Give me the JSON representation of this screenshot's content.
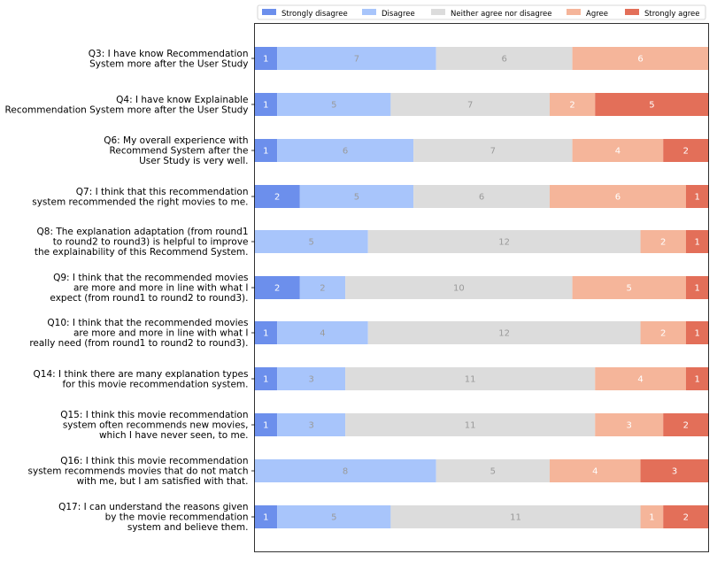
{
  "chart_data": {
    "type": "bar",
    "orientation": "horizontal",
    "stacked": true,
    "legend": {
      "placement": "top",
      "entries": [
        "Strongly disagree",
        "Disagree",
        "Neither agree nor disagree",
        "Agree",
        "Strongly agree"
      ]
    },
    "colors": [
      "#6c8fec",
      "#a8c5fb",
      "#dcdcdc",
      "#f5b59a",
      "#e36f59"
    ],
    "label_colors": [
      "#ffffff",
      "#9a9a9a",
      "#9a9a9a",
      "#ffffff",
      "#ffffff"
    ],
    "grid": false,
    "xlim": [
      0,
      20
    ],
    "categories": [
      [
        "Q3: I have know Recommendation",
        "System more after the User Study"
      ],
      [
        "Q4: I have know Explainable",
        "Recommendation System more after the User Study"
      ],
      [
        "Q6: My overall experience with",
        "Recommend System after the",
        "User Study is very well."
      ],
      [
        "Q7: I think that this recommendation",
        "system recommended the right movies to me."
      ],
      [
        "Q8: The explanation adaptation (from round1",
        "to round2 to round3) is helpful to improve",
        "the explainability of this Recommend System."
      ],
      [
        "Q9: I think that the recommended movies",
        "are more and more in line with what I",
        "expect (from round1 to round2 to round3)."
      ],
      [
        "Q10: I think that the recommended movies",
        "are more and more in line with what I",
        "really need (from round1 to round2 to round3)."
      ],
      [
        "Q14: I think there are many explanation types",
        "for this movie recommendation system."
      ],
      [
        "Q15: I think this movie recommendation",
        "system often recommends new movies,",
        "which I have never seen, to me."
      ],
      [
        "Q16: I think this movie recommendation",
        "system recommends movies that do not match",
        "with me, but I am satisfied with that."
      ],
      [
        "Q17: I can understand the reasons given",
        "by the movie recommendation",
        "system and believe them."
      ]
    ],
    "series": [
      {
        "name": "Strongly disagree",
        "values": [
          1,
          1,
          1,
          2,
          0,
          2,
          1,
          1,
          1,
          0,
          1
        ]
      },
      {
        "name": "Disagree",
        "values": [
          7,
          5,
          6,
          5,
          5,
          2,
          4,
          3,
          3,
          8,
          5
        ]
      },
      {
        "name": "Neither agree nor disagree",
        "values": [
          6,
          7,
          7,
          6,
          12,
          10,
          12,
          11,
          11,
          5,
          11
        ]
      },
      {
        "name": "Agree",
        "values": [
          6,
          2,
          4,
          6,
          2,
          5,
          2,
          4,
          3,
          4,
          1
        ]
      },
      {
        "name": "Strongly agree",
        "values": [
          0,
          5,
          2,
          1,
          1,
          1,
          1,
          1,
          2,
          3,
          2
        ]
      }
    ]
  }
}
